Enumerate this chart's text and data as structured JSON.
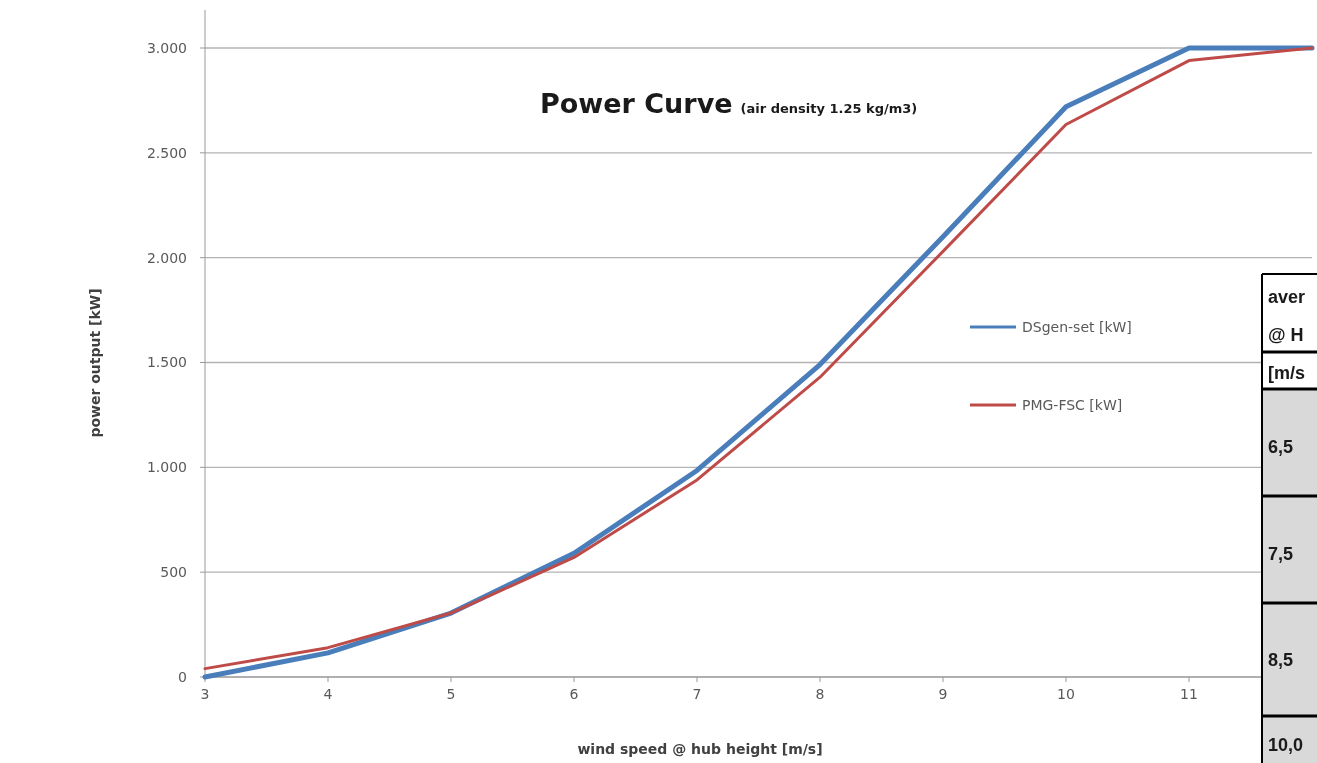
{
  "chart_data": [
    {
      "type": "line",
      "title": "Power Curve",
      "subtitle": "(air density 1.25 kg/m3)",
      "xlabel": "wind speed @ hub height  [m/s]",
      "ylabel": "power output  [kW]",
      "x": [
        3,
        4,
        5,
        6,
        7,
        8,
        9,
        10,
        11,
        12
      ],
      "series": [
        {
          "name": "DSgen-set [kW]",
          "color": "#4a7ebb",
          "values": [
            0,
            115,
            305,
            590,
            985,
            1490,
            2100,
            2720,
            3000,
            3000
          ]
        },
        {
          "name": "PMG-FSC [kW]",
          "color": "#be4b48",
          "values": [
            40,
            140,
            305,
            570,
            940,
            1430,
            2030,
            2635,
            2940,
            3000
          ]
        }
      ],
      "xlim": [
        3,
        12
      ],
      "xticks": [
        3,
        4,
        5,
        6,
        7,
        8,
        9,
        10,
        11
      ],
      "ylim": [
        0,
        3000
      ],
      "yticks": [
        0,
        {
          "value": 500,
          "label": "500"
        },
        {
          "value": 1000,
          "label": "1.000"
        },
        {
          "value": 1500,
          "label": "1.500"
        },
        {
          "value": 2000,
          "label": "2.000"
        },
        {
          "value": 2500,
          "label": "2.500"
        },
        {
          "value": 3000,
          "label": "3.000"
        }
      ],
      "grid": "y",
      "legend": "right",
      "marker": "none",
      "line_style": "solid"
    },
    {
      "type": "other",
      "annotations": [
        "aver",
        "@ H",
        "[m/s",
        "6,5",
        "7,5",
        "8,5",
        "10,0"
      ]
    }
  ]
}
